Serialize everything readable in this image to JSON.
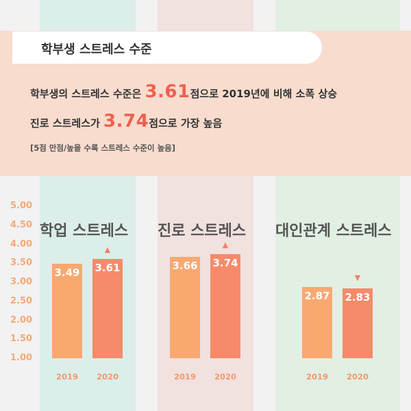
{
  "header": {
    "title": "학부생 스트레스 수준",
    "line1_pre": "학부생의 스트레스 수준은 ",
    "line1_value": "3.61",
    "line1_post": "점으로 2019년에 비해 소폭 상승",
    "line2_pre": "진로 스트레스가 ",
    "line2_value": "3.74",
    "line2_post": "점으로 가장 높음",
    "note": "[5점 만점/높을 수록 스트레스 수준이 높음]"
  },
  "colors": {
    "bar_2019": "#f9a870",
    "bar_2020": "#f78a6a",
    "highlight": "#f0604f"
  },
  "chart_data": {
    "type": "bar",
    "ylim": [
      1.0,
      5.0
    ],
    "yticks": [
      "5.00",
      "4.50",
      "4.00",
      "3.50",
      "3.00",
      "2.50",
      "2.00",
      "1.50",
      "1.00"
    ],
    "series_names": [
      "2019",
      "2020"
    ],
    "groups": [
      {
        "title": "학업 스트레스",
        "values": [
          3.49,
          3.61
        ],
        "labels": [
          "3.49",
          "3.61"
        ],
        "change": "up",
        "change_symbol": "▲"
      },
      {
        "title": "진로 스트레스",
        "values": [
          3.66,
          3.74
        ],
        "labels": [
          "3.66",
          "3.74"
        ],
        "change": "up",
        "change_symbol": "▲"
      },
      {
        "title": "대인관계 스트레스",
        "values": [
          2.87,
          2.83
        ],
        "labels": [
          "2.87",
          "2.83"
        ],
        "change": "down",
        "change_symbol": "▼"
      }
    ]
  }
}
